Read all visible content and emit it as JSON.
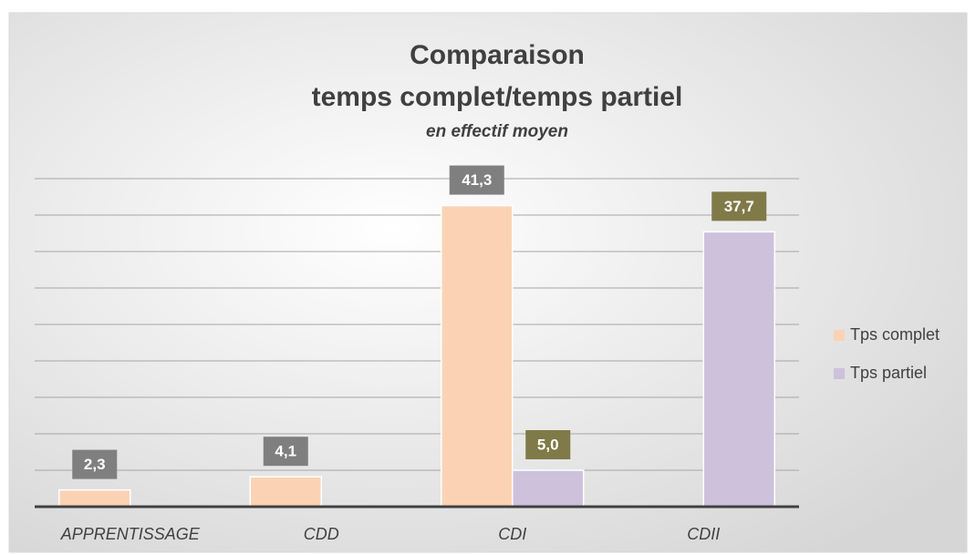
{
  "chart_data": {
    "type": "bar",
    "title": [
      "Comparaison",
      "temps complet/temps partiel"
    ],
    "subtitle": "en effectif moyen",
    "categories": [
      "APPRENTISSAGE",
      "CDD",
      "CDI",
      "CDII"
    ],
    "series": [
      {
        "name": "Tps complet",
        "color": "#fbd3b4",
        "label_color": "#7f7f7f",
        "values": [
          2.3,
          4.1,
          41.3,
          null
        ],
        "value_labels": [
          "2,3",
          "4,1",
          "41,3",
          null
        ]
      },
      {
        "name": "Tps partiel",
        "color": "#cdc1dc",
        "label_color": "#7f7a47",
        "values": [
          null,
          null,
          5.0,
          37.7
        ],
        "value_labels": [
          null,
          null,
          "5,0",
          "37,7"
        ]
      }
    ],
    "ylim": [
      0,
      45
    ],
    "yticks": [
      0,
      5,
      10,
      15,
      20,
      25,
      30,
      35,
      40,
      45
    ],
    "grid": true,
    "legend": "right"
  }
}
